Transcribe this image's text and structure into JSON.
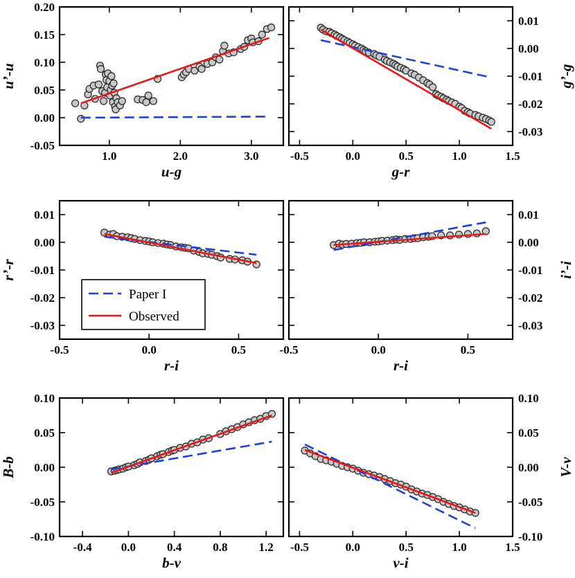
{
  "colors": {
    "paper": "#1f3fd6",
    "observed": "#e81818",
    "point_fill": "#c8c8c8",
    "point_edge": "#222222"
  },
  "legend": {
    "paper_label": "Paper I",
    "observed_label": "Observed"
  },
  "chart_data": [
    {
      "id": "ug",
      "type": "scatter",
      "xlabel": "u-g",
      "ylabel": "u’-u",
      "yaxis_side": "left",
      "xlim": [
        0.3,
        3.45
      ],
      "ylim": [
        -0.05,
        0.2
      ],
      "xticks": [
        1.0,
        2.0,
        3.0
      ],
      "xticklabels": [
        "1.0",
        "2.0",
        "3.0"
      ],
      "yticks": [
        -0.05,
        0.0,
        0.05,
        0.1,
        0.15,
        0.2
      ],
      "yticklabels": [
        "-0.05",
        "0.00",
        "0.05",
        "0.10",
        "0.15",
        "0.20"
      ],
      "paper_line": [
        [
          0.6,
          0.0
        ],
        [
          3.25,
          0.002
        ]
      ],
      "observed_line": [
        [
          0.6,
          0.026
        ],
        [
          3.25,
          0.144
        ]
      ],
      "points": [
        [
          0.52,
          0.026
        ],
        [
          0.6,
          -0.002
        ],
        [
          0.65,
          0.022
        ],
        [
          0.7,
          0.042
        ],
        [
          0.72,
          0.052
        ],
        [
          0.78,
          0.058
        ],
        [
          0.8,
          0.034
        ],
        [
          0.85,
          0.06
        ],
        [
          0.87,
          0.094
        ],
        [
          0.88,
          0.088
        ],
        [
          0.9,
          0.048
        ],
        [
          0.92,
          0.03
        ],
        [
          0.94,
          0.045
        ],
        [
          0.95,
          0.078
        ],
        [
          0.96,
          0.068
        ],
        [
          0.97,
          0.055
        ],
        [
          0.98,
          0.08
        ],
        [
          1.0,
          0.066
        ],
        [
          1.01,
          0.04
        ],
        [
          1.02,
          0.05
        ],
        [
          1.03,
          0.075
        ],
        [
          1.04,
          0.058
        ],
        [
          1.05,
          0.028
        ],
        [
          1.06,
          0.062
        ],
        [
          1.07,
          0.045
        ],
        [
          1.08,
          0.02
        ],
        [
          1.09,
          0.015
        ],
        [
          1.1,
          0.035
        ],
        [
          1.12,
          0.028
        ],
        [
          1.15,
          0.022
        ],
        [
          1.18,
          0.03
        ],
        [
          1.4,
          0.033
        ],
        [
          1.47,
          0.032
        ],
        [
          1.52,
          0.028
        ],
        [
          1.55,
          0.04
        ],
        [
          1.62,
          0.03
        ],
        [
          1.68,
          0.07
        ],
        [
          2.02,
          0.073
        ],
        [
          2.05,
          0.078
        ],
        [
          2.08,
          0.082
        ],
        [
          2.12,
          0.088
        ],
        [
          2.2,
          0.085
        ],
        [
          2.27,
          0.092
        ],
        [
          2.3,
          0.088
        ],
        [
          2.38,
          0.097
        ],
        [
          2.45,
          0.1
        ],
        [
          2.5,
          0.109
        ],
        [
          2.55,
          0.105
        ],
        [
          2.6,
          0.12
        ],
        [
          2.62,
          0.13
        ],
        [
          2.68,
          0.116
        ],
        [
          2.75,
          0.118
        ],
        [
          2.85,
          0.124
        ],
        [
          2.9,
          0.128
        ],
        [
          2.95,
          0.14
        ],
        [
          3.0,
          0.143
        ],
        [
          3.02,
          0.136
        ],
        [
          3.1,
          0.138
        ],
        [
          3.15,
          0.15
        ],
        [
          3.22,
          0.16
        ],
        [
          3.28,
          0.163
        ]
      ]
    },
    {
      "id": "gr",
      "type": "scatter",
      "xlabel": "g-r",
      "ylabel": "g’-g",
      "yaxis_side": "right",
      "xlim": [
        -0.6,
        1.5
      ],
      "ylim": [
        -0.035,
        0.015
      ],
      "xticks": [
        -0.5,
        0.0,
        0.5,
        1.0,
        1.5
      ],
      "xticklabels": [
        "-0.5",
        "0.0",
        "0.5",
        "1.0",
        "1.5"
      ],
      "yticks": [
        -0.03,
        -0.02,
        -0.01,
        0.0,
        0.01
      ],
      "yticklabels": [
        "-0.03",
        "-0.02",
        "-0.01",
        "0.00",
        "0.01"
      ],
      "paper_line": [
        [
          -0.3,
          0.003
        ],
        [
          1.3,
          -0.0105
        ]
      ],
      "observed_line": [
        [
          -0.3,
          0.0068
        ],
        [
          1.3,
          -0.029
        ]
      ],
      "points": [
        [
          -0.3,
          0.0075
        ],
        [
          -0.28,
          0.0068
        ],
        [
          -0.25,
          0.0062
        ],
        [
          -0.22,
          0.006
        ],
        [
          -0.2,
          0.0055
        ],
        [
          -0.17,
          0.005
        ],
        [
          -0.15,
          0.0045
        ],
        [
          -0.12,
          0.004
        ],
        [
          -0.1,
          0.0035
        ],
        [
          -0.08,
          0.003
        ],
        [
          -0.05,
          0.0025
        ],
        [
          -0.03,
          0.002
        ],
        [
          0.0,
          0.0015
        ],
        [
          0.02,
          0.001
        ],
        [
          0.05,
          0.0005
        ],
        [
          0.08,
          0.0
        ],
        [
          0.1,
          -0.0005
        ],
        [
          0.12,
          -0.001
        ],
        [
          0.15,
          -0.0015
        ],
        [
          0.2,
          -0.002
        ],
        [
          0.22,
          -0.0025
        ],
        [
          0.25,
          -0.003
        ],
        [
          0.3,
          -0.004
        ],
        [
          0.32,
          -0.0045
        ],
        [
          0.35,
          -0.005
        ],
        [
          0.38,
          -0.0055
        ],
        [
          0.4,
          -0.006
        ],
        [
          0.42,
          -0.0065
        ],
        [
          0.45,
          -0.007
        ],
        [
          0.48,
          -0.0075
        ],
        [
          0.5,
          -0.008
        ],
        [
          0.55,
          -0.009
        ],
        [
          0.58,
          -0.0095
        ],
        [
          0.62,
          -0.0105
        ],
        [
          0.66,
          -0.0115
        ],
        [
          0.7,
          -0.0125
        ],
        [
          0.72,
          -0.013
        ],
        [
          0.75,
          -0.014
        ],
        [
          0.78,
          -0.0165
        ],
        [
          0.8,
          -0.017
        ],
        [
          0.83,
          -0.0175
        ],
        [
          0.85,
          -0.018
        ],
        [
          0.88,
          -0.0185
        ],
        [
          0.9,
          -0.019
        ],
        [
          0.93,
          -0.0195
        ],
        [
          0.96,
          -0.02
        ],
        [
          1.0,
          -0.021
        ],
        [
          1.02,
          -0.0215
        ],
        [
          1.05,
          -0.0225
        ],
        [
          1.08,
          -0.023
        ],
        [
          1.1,
          -0.0235
        ],
        [
          1.15,
          -0.024
        ],
        [
          1.18,
          -0.0245
        ],
        [
          1.22,
          -0.025
        ],
        [
          1.25,
          -0.0255
        ],
        [
          1.28,
          -0.026
        ],
        [
          1.3,
          -0.0265
        ]
      ]
    },
    {
      "id": "ri_left",
      "type": "scatter",
      "xlabel": "r-i",
      "ylabel": "r’-r",
      "yaxis_side": "left",
      "xlim": [
        -0.5,
        0.75
      ],
      "ylim": [
        -0.035,
        0.015
      ],
      "xticks": [
        -0.5,
        0.0,
        0.5
      ],
      "xticklabels": [
        "-0.5",
        "0.0",
        "0.5"
      ],
      "yticks": [
        -0.03,
        -0.02,
        -0.01,
        0.0,
        0.01
      ],
      "yticklabels": [
        "-0.03",
        "-0.02",
        "-0.01",
        "0.00",
        "0.01"
      ],
      "paper_line": [
        [
          -0.25,
          0.002
        ],
        [
          0.6,
          -0.0045
        ]
      ],
      "observed_line": [
        [
          -0.25,
          0.003
        ],
        [
          0.6,
          -0.0075
        ]
      ],
      "points": [
        [
          -0.25,
          0.0035
        ],
        [
          -0.22,
          0.0028
        ],
        [
          -0.2,
          0.003
        ],
        [
          -0.18,
          0.0022
        ],
        [
          -0.15,
          0.002
        ],
        [
          -0.12,
          0.0018
        ],
        [
          -0.1,
          0.0015
        ],
        [
          -0.08,
          0.0012
        ],
        [
          -0.05,
          0.0008
        ],
        [
          -0.02,
          0.0005
        ],
        [
          0.0,
          0.0003
        ],
        [
          0.02,
          0.0
        ],
        [
          0.05,
          -0.0003
        ],
        [
          0.08,
          -0.0005
        ],
        [
          0.1,
          -0.0008
        ],
        [
          0.12,
          -0.001
        ],
        [
          0.15,
          -0.0015
        ],
        [
          0.18,
          -0.0018
        ],
        [
          0.2,
          -0.002
        ],
        [
          0.22,
          -0.0022
        ],
        [
          0.25,
          -0.003
        ],
        [
          0.28,
          -0.0035
        ],
        [
          0.3,
          -0.004
        ],
        [
          0.33,
          -0.0042
        ],
        [
          0.35,
          -0.0045
        ],
        [
          0.38,
          -0.005
        ],
        [
          0.4,
          -0.0055
        ],
        [
          0.45,
          -0.006
        ],
        [
          0.48,
          -0.0062
        ],
        [
          0.52,
          -0.0065
        ],
        [
          0.55,
          -0.007
        ],
        [
          0.6,
          -0.008
        ]
      ]
    },
    {
      "id": "ri_right",
      "type": "scatter",
      "xlabel": "r-i",
      "ylabel": "i’-i",
      "yaxis_side": "right",
      "xlim": [
        -0.5,
        0.75
      ],
      "ylim": [
        -0.035,
        0.015
      ],
      "xticks": [
        -0.5,
        0.0,
        0.5
      ],
      "xticklabels": [
        "-0.5",
        "0.0",
        "0.5"
      ],
      "yticks": [
        -0.03,
        -0.02,
        -0.01,
        0.0,
        0.01
      ],
      "yticklabels": [
        "-0.03",
        "-0.02",
        "-0.01",
        "0.00",
        "0.01"
      ],
      "paper_line": [
        [
          -0.25,
          -0.0028
        ],
        [
          0.6,
          0.0072
        ]
      ],
      "observed_line": [
        [
          -0.25,
          -0.001
        ],
        [
          0.6,
          0.003
        ]
      ],
      "points": [
        [
          -0.25,
          -0.001
        ],
        [
          -0.22,
          -0.0005
        ],
        [
          -0.2,
          -0.0008
        ],
        [
          -0.18,
          -0.0006
        ],
        [
          -0.15,
          -0.0005
        ],
        [
          -0.12,
          -0.0003
        ],
        [
          -0.1,
          -0.0002
        ],
        [
          -0.08,
          0.0
        ],
        [
          -0.05,
          0.0
        ],
        [
          -0.02,
          0.0002
        ],
        [
          0.0,
          0.0003
        ],
        [
          0.02,
          0.0005
        ],
        [
          0.05,
          0.0006
        ],
        [
          0.08,
          0.0008
        ],
        [
          0.1,
          0.001
        ],
        [
          0.12,
          0.0009
        ],
        [
          0.15,
          0.0012
        ],
        [
          0.18,
          0.0012
        ],
        [
          0.2,
          0.0015
        ],
        [
          0.22,
          0.0015
        ],
        [
          0.25,
          0.0018
        ],
        [
          0.28,
          0.002
        ],
        [
          0.3,
          0.0022
        ],
        [
          0.35,
          0.0025
        ],
        [
          0.4,
          0.0025
        ],
        [
          0.45,
          0.0028
        ],
        [
          0.5,
          0.003
        ],
        [
          0.55,
          0.0032
        ],
        [
          0.6,
          0.004
        ]
      ]
    },
    {
      "id": "bv",
      "type": "scatter",
      "xlabel": "b-v",
      "ylabel": "B-b",
      "yaxis_side": "left",
      "xlim": [
        -0.6,
        1.35
      ],
      "ylim": [
        -0.1,
        0.1
      ],
      "xticks": [
        -0.4,
        0.0,
        0.4,
        0.8,
        1.2
      ],
      "xticklabels": [
        "-0.4",
        "0.0",
        "0.4",
        "0.8",
        "1.2"
      ],
      "yticks": [
        -0.1,
        -0.05,
        0.0,
        0.05,
        0.1
      ],
      "yticklabels": [
        "-0.10",
        "-0.05",
        "0.00",
        "0.05",
        "0.10"
      ],
      "paper_line": [
        [
          -0.15,
          -0.003
        ],
        [
          1.25,
          0.037
        ]
      ],
      "observed_line": [
        [
          -0.15,
          -0.008
        ],
        [
          1.25,
          0.075
        ]
      ],
      "points": [
        [
          -0.15,
          -0.006
        ],
        [
          -0.12,
          -0.005
        ],
        [
          -0.1,
          -0.004
        ],
        [
          -0.08,
          -0.003
        ],
        [
          -0.05,
          -0.002
        ],
        [
          -0.02,
          0.0
        ],
        [
          0.0,
          0.001
        ],
        [
          0.05,
          0.003
        ],
        [
          0.08,
          0.005
        ],
        [
          0.1,
          0.007
        ],
        [
          0.15,
          0.009
        ],
        [
          0.18,
          0.011
        ],
        [
          0.2,
          0.013
        ],
        [
          0.25,
          0.016
        ],
        [
          0.28,
          0.018
        ],
        [
          0.3,
          0.019
        ],
        [
          0.35,
          0.022
        ],
        [
          0.38,
          0.024
        ],
        [
          0.4,
          0.025
        ],
        [
          0.45,
          0.028
        ],
        [
          0.5,
          0.03
        ],
        [
          0.55,
          0.034
        ],
        [
          0.6,
          0.036
        ],
        [
          0.65,
          0.04
        ],
        [
          0.7,
          0.042
        ],
        [
          0.8,
          0.048
        ],
        [
          0.85,
          0.052
        ],
        [
          0.9,
          0.055
        ],
        [
          0.95,
          0.058
        ],
        [
          1.0,
          0.062
        ],
        [
          1.05,
          0.065
        ],
        [
          1.1,
          0.068
        ],
        [
          1.15,
          0.07
        ],
        [
          1.2,
          0.074
        ],
        [
          1.25,
          0.077
        ]
      ]
    },
    {
      "id": "vi",
      "type": "scatter",
      "xlabel": "v-i",
      "ylabel": "V-v",
      "yaxis_side": "right",
      "xlim": [
        -0.6,
        1.5
      ],
      "ylim": [
        -0.1,
        0.1
      ],
      "xticks": [
        -0.5,
        0.0,
        0.5,
        1.0,
        1.5
      ],
      "xticklabels": [
        "-0.5",
        "0.0",
        "0.5",
        "1.0",
        "1.5"
      ],
      "yticks": [
        -0.1,
        -0.05,
        0.0,
        0.05,
        0.1
      ],
      "yticklabels": [
        "-0.10",
        "-0.05",
        "0.00",
        "0.05",
        "0.10"
      ],
      "paper_line": [
        [
          -0.45,
          0.033
        ],
        [
          1.15,
          -0.088
        ]
      ],
      "observed_line": [
        [
          -0.45,
          0.025
        ],
        [
          1.15,
          -0.066
        ]
      ],
      "points": [
        [
          -0.45,
          0.024
        ],
        [
          -0.4,
          0.02
        ],
        [
          -0.35,
          0.016
        ],
        [
          -0.3,
          0.012
        ],
        [
          -0.25,
          0.01
        ],
        [
          -0.2,
          0.008
        ],
        [
          -0.15,
          0.005
        ],
        [
          -0.1,
          0.002
        ],
        [
          -0.05,
          0.0
        ],
        [
          0.0,
          -0.002
        ],
        [
          0.05,
          -0.005
        ],
        [
          0.1,
          -0.008
        ],
        [
          0.15,
          -0.01
        ],
        [
          0.2,
          -0.012
        ],
        [
          0.25,
          -0.014
        ],
        [
          0.3,
          -0.017
        ],
        [
          0.35,
          -0.02
        ],
        [
          0.4,
          -0.023
        ],
        [
          0.45,
          -0.025
        ],
        [
          0.5,
          -0.028
        ],
        [
          0.55,
          -0.032
        ],
        [
          0.6,
          -0.035
        ],
        [
          0.65,
          -0.038
        ],
        [
          0.7,
          -0.04
        ],
        [
          0.75,
          -0.043
        ],
        [
          0.8,
          -0.046
        ],
        [
          0.85,
          -0.05
        ],
        [
          0.9,
          -0.053
        ],
        [
          0.95,
          -0.056
        ],
        [
          1.0,
          -0.058
        ],
        [
          1.05,
          -0.061
        ],
        [
          1.1,
          -0.064
        ],
        [
          1.15,
          -0.066
        ]
      ]
    }
  ]
}
